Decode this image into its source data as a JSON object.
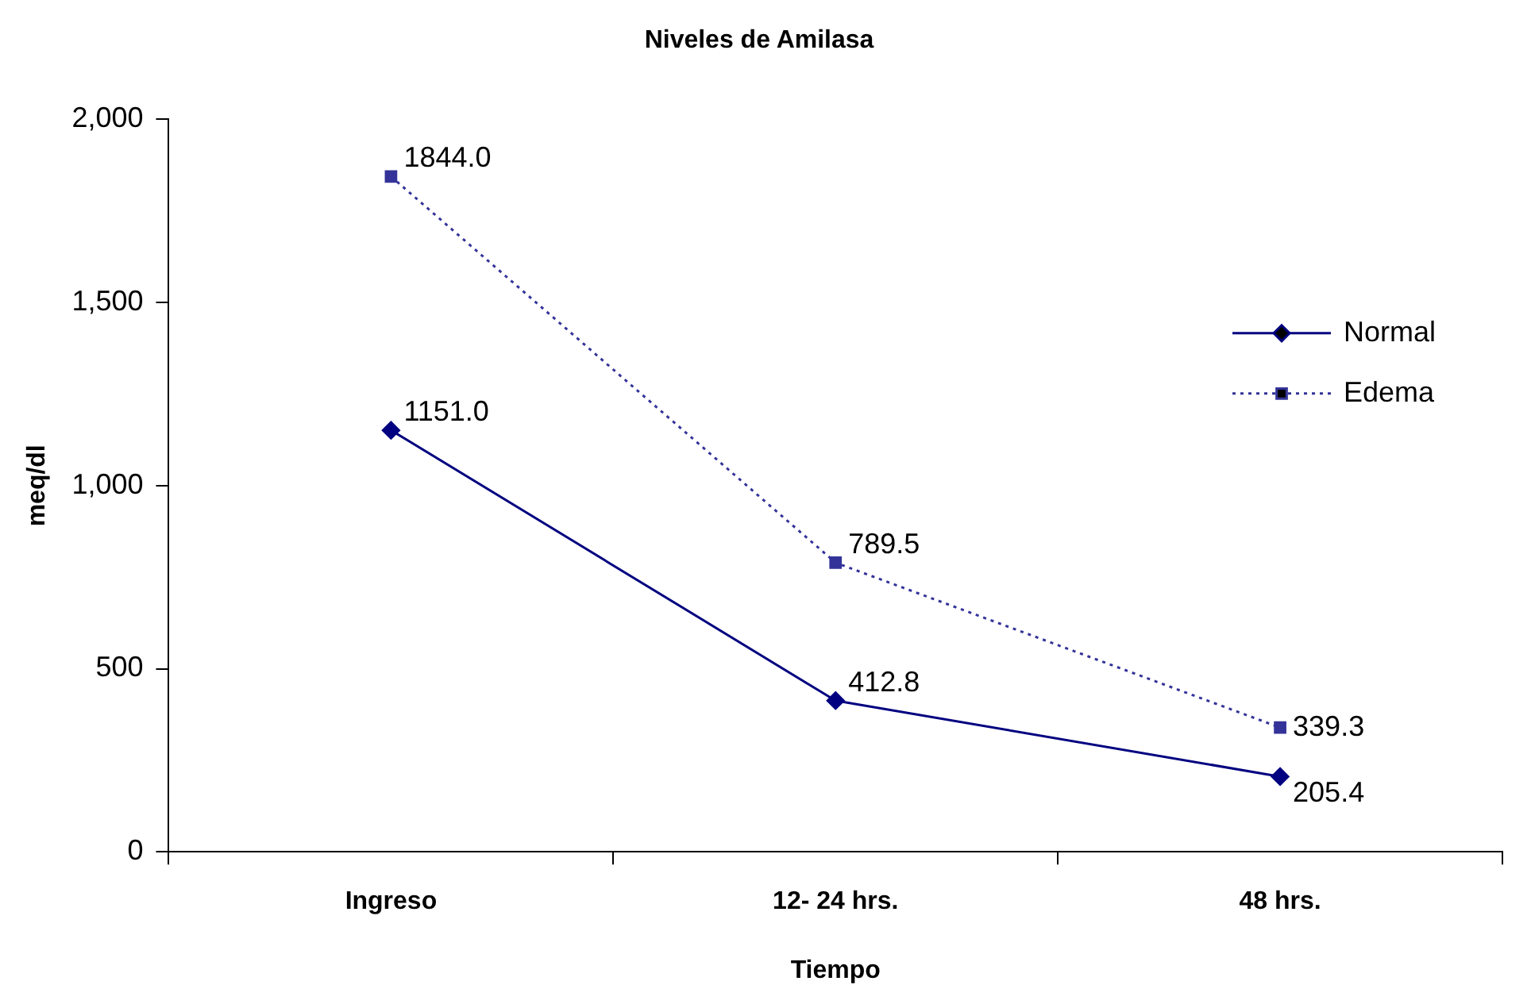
{
  "chart_data": {
    "type": "line",
    "title": "Niveles de Amilasa",
    "xlabel": "Tiempo",
    "ylabel": "meq/dl",
    "categories": [
      "Ingreso",
      "12- 24 hrs.",
      "48 hrs."
    ],
    "series": [
      {
        "name": "Normal",
        "color": "#000080",
        "values": [
          1151.0,
          412.8,
          205.4
        ],
        "value_labels": [
          "1151.0",
          "412.8",
          "205.4"
        ],
        "marker": "diamond",
        "line_style": "solid"
      },
      {
        "name": "Edema",
        "color": "#333399",
        "values": [
          1844.0,
          789.5,
          339.3
        ],
        "value_labels": [
          "1844.0",
          "789.5",
          "339.3"
        ],
        "marker": "square",
        "line_style": "dotted"
      }
    ],
    "ylim": [
      0,
      2000
    ],
    "yticks": [
      {
        "value": 0,
        "label": "0"
      },
      {
        "value": 500,
        "label": "500"
      },
      {
        "value": 1000,
        "label": "1,000"
      },
      {
        "value": 1500,
        "label": "1,500"
      },
      {
        "value": 2000,
        "label": "2,000"
      }
    ],
    "grid": false,
    "legend": "right"
  }
}
